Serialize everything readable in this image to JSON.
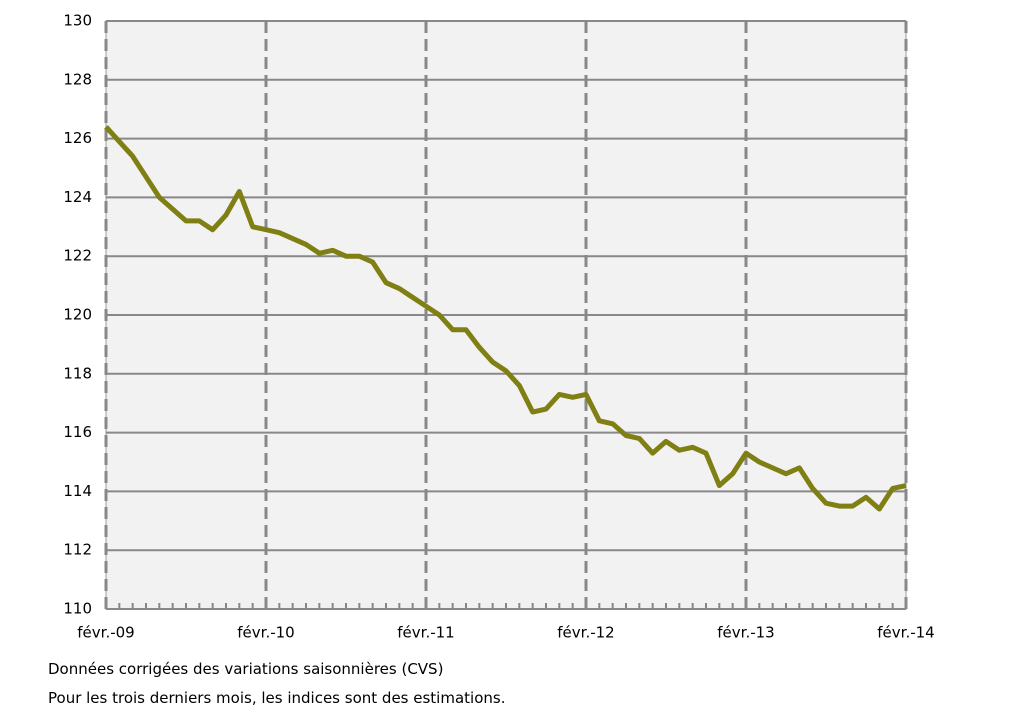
{
  "chart_data": {
    "type": "line",
    "categories": [
      "févr.-09",
      null,
      null,
      null,
      null,
      null,
      null,
      null,
      null,
      null,
      null,
      null,
      "févr.-10",
      null,
      null,
      null,
      null,
      null,
      null,
      null,
      null,
      null,
      null,
      null,
      "févr.-11",
      null,
      null,
      null,
      null,
      null,
      null,
      null,
      null,
      null,
      null,
      null,
      "févr.-12",
      null,
      null,
      null,
      null,
      null,
      null,
      null,
      null,
      null,
      null,
      null,
      "févr.-13",
      null,
      null,
      null,
      null,
      null,
      null,
      null,
      null,
      null,
      null,
      null,
      "févr.-14"
    ],
    "values": [
      126.4,
      125.9,
      125.4,
      124.7,
      124.0,
      123.6,
      123.2,
      123.2,
      122.9,
      123.4,
      124.2,
      123.0,
      122.9,
      122.8,
      122.6,
      122.4,
      122.1,
      122.2,
      122.0,
      122.0,
      121.8,
      121.1,
      120.9,
      120.6,
      120.3,
      120.0,
      119.5,
      119.5,
      118.9,
      118.4,
      118.1,
      117.6,
      116.7,
      116.8,
      117.3,
      117.2,
      117.3,
      116.4,
      116.3,
      115.9,
      115.8,
      115.3,
      115.7,
      115.4,
      115.5,
      115.3,
      114.2,
      114.6,
      115.3,
      115.0,
      114.8,
      114.6,
      114.8,
      114.1,
      113.6,
      113.5,
      113.5,
      113.8,
      113.4,
      114.1,
      114.2
    ],
    "color": "#7f7f14",
    "ylim": [
      110,
      130
    ],
    "yticks": [
      110,
      112,
      114,
      116,
      118,
      120,
      122,
      124,
      126,
      128,
      130
    ],
    "grid": true,
    "notes": [
      "Données corrigées des variations saisonnières (CVS)",
      "Pour les trois derniers mois, les indices sont des estimations."
    ]
  }
}
